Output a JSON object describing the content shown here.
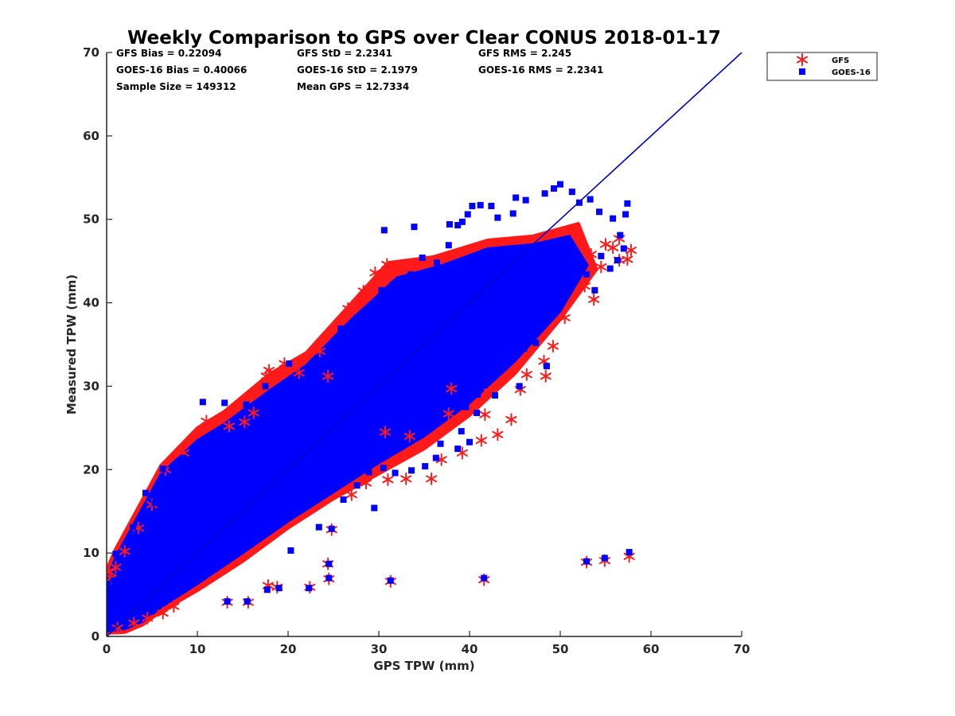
{
  "chart_data": {
    "type": "scatter",
    "title": "Weekly Comparison to GPS over Clear CONUS 2018-01-17",
    "xlabel": "GPS TPW (mm)",
    "ylabel": "Measured TPW (mm)",
    "xlim": [
      0,
      70
    ],
    "ylim": [
      0,
      70
    ],
    "xticks": [
      "0",
      "10",
      "20",
      "30",
      "40",
      "50",
      "60",
      "70"
    ],
    "yticks": [
      "0",
      "10",
      "20",
      "30",
      "40",
      "50",
      "60",
      "70"
    ],
    "grid": false,
    "legend_position": "outside-top-right",
    "stats": {
      "row1": [
        "GFS Bias = 0.22094",
        "GFS StD = 2.2341",
        "GFS RMS = 2.245"
      ],
      "row2": [
        "GOES-16 Bias = 0.40066",
        "GOES-16 StD = 2.1979",
        "GOES-16 RMS = 2.2341"
      ],
      "row3": [
        "Sample Size = 149312",
        "Mean GPS = 12.7334"
      ]
    },
    "reference_line": {
      "x": [
        0,
        70
      ],
      "y": [
        0,
        70
      ],
      "color": "#0000cc"
    },
    "series": [
      {
        "name": "GFS",
        "marker": "asterisk",
        "color": "#ff1a1a",
        "points": [
          [
            0.3,
            7.7
          ],
          [
            0.5,
            7.0
          ],
          [
            1.0,
            8.3
          ],
          [
            2.0,
            10.2
          ],
          [
            3.5,
            13.0
          ],
          [
            5.0,
            15.8
          ],
          [
            6.5,
            20.0
          ],
          [
            8.5,
            22.0
          ],
          [
            11.0,
            25.8
          ],
          [
            13.5,
            25.2
          ],
          [
            15.2,
            25.7
          ],
          [
            16.2,
            26.8
          ],
          [
            17.6,
            31.2
          ],
          [
            17.9,
            31.9
          ],
          [
            19.6,
            32.7
          ],
          [
            21.2,
            31.6
          ],
          [
            23.5,
            34.2
          ],
          [
            24.4,
            31.2
          ],
          [
            26.6,
            39.3
          ],
          [
            28.3,
            41.4
          ],
          [
            29.6,
            43.6
          ],
          [
            30.9,
            44.6
          ],
          [
            32.3,
            44.2
          ],
          [
            13.3,
            4.1
          ],
          [
            15.6,
            4.1
          ],
          [
            17.8,
            6.1
          ],
          [
            18.8,
            5.9
          ],
          [
            22.4,
            5.9
          ],
          [
            24.5,
            6.9
          ],
          [
            24.4,
            8.7
          ],
          [
            31.3,
            6.6
          ],
          [
            41.6,
            6.8
          ],
          [
            52.9,
            8.9
          ],
          [
            54.9,
            9.1
          ],
          [
            57.6,
            9.6
          ],
          [
            24.8,
            12.8
          ],
          [
            27.0,
            17.0
          ],
          [
            28.6,
            18.4
          ],
          [
            31.0,
            18.8
          ],
          [
            33.0,
            18.9
          ],
          [
            35.8,
            18.9
          ],
          [
            36.9,
            21.2
          ],
          [
            39.2,
            22.0
          ],
          [
            41.3,
            23.5
          ],
          [
            43.1,
            24.2
          ],
          [
            44.6,
            26.0
          ],
          [
            45.6,
            29.6
          ],
          [
            46.3,
            31.4
          ],
          [
            48.2,
            33.0
          ],
          [
            48.4,
            31.2
          ],
          [
            49.2,
            34.8
          ],
          [
            50.5,
            38.2
          ],
          [
            52.7,
            42.0
          ],
          [
            53.7,
            40.4
          ],
          [
            54.5,
            44.3
          ],
          [
            56.5,
            45.1
          ],
          [
            57.4,
            45.2
          ],
          [
            57.8,
            46.3
          ],
          [
            56.5,
            47.7
          ],
          [
            55.0,
            47.0
          ],
          [
            53.4,
            45.8
          ],
          [
            55.8,
            46.6
          ],
          [
            30.7,
            24.5
          ],
          [
            33.4,
            24.0
          ],
          [
            37.7,
            26.7
          ],
          [
            41.7,
            26.6
          ],
          [
            42.2,
            29.3
          ],
          [
            38.0,
            29.7
          ],
          [
            1.2,
            1.0
          ],
          [
            3.0,
            1.6
          ],
          [
            4.5,
            2.2
          ],
          [
            6.2,
            2.8
          ],
          [
            7.4,
            3.6
          ]
        ]
      },
      {
        "name": "GOES-16",
        "marker": "square",
        "color": "#0000ff",
        "points": [
          [
            4.3,
            17.2
          ],
          [
            6.2,
            20.1
          ],
          [
            7.2,
            20.2
          ],
          [
            10.6,
            28.1
          ],
          [
            13.0,
            28.0
          ],
          [
            15.4,
            27.8
          ],
          [
            17.5,
            30.0
          ],
          [
            20.1,
            32.7
          ],
          [
            22.8,
            30.8
          ],
          [
            25.1,
            35.4
          ],
          [
            25.8,
            36.9
          ],
          [
            27.6,
            38.2
          ],
          [
            29.0,
            39.2
          ],
          [
            30.3,
            41.5
          ],
          [
            31.6,
            42.2
          ],
          [
            33.5,
            43.4
          ],
          [
            34.8,
            45.4
          ],
          [
            36.4,
            44.8
          ],
          [
            37.7,
            46.9
          ],
          [
            30.6,
            48.7
          ],
          [
            33.9,
            49.1
          ],
          [
            37.8,
            49.4
          ],
          [
            38.7,
            49.3
          ],
          [
            39.2,
            49.7
          ],
          [
            39.8,
            50.6
          ],
          [
            40.3,
            51.6
          ],
          [
            41.2,
            51.7
          ],
          [
            42.4,
            51.6
          ],
          [
            43.1,
            50.2
          ],
          [
            44.8,
            50.7
          ],
          [
            45.1,
            52.6
          ],
          [
            46.2,
            52.3
          ],
          [
            48.3,
            53.1
          ],
          [
            49.3,
            53.7
          ],
          [
            50.0,
            54.2
          ],
          [
            51.3,
            53.3
          ],
          [
            52.1,
            52.0
          ],
          [
            53.3,
            52.4
          ],
          [
            54.3,
            50.9
          ],
          [
            55.8,
            50.1
          ],
          [
            57.4,
            51.9
          ],
          [
            57.2,
            50.6
          ],
          [
            56.6,
            48.1
          ],
          [
            57.0,
            46.5
          ],
          [
            56.3,
            45.1
          ],
          [
            54.5,
            45.6
          ],
          [
            55.5,
            44.1
          ],
          [
            53.8,
            41.5
          ],
          [
            52.9,
            43.4
          ],
          [
            51.4,
            44.4
          ],
          [
            48.9,
            39.4
          ],
          [
            47.3,
            35.2
          ],
          [
            48.5,
            32.4
          ],
          [
            45.5,
            30.0
          ],
          [
            42.8,
            28.9
          ],
          [
            40.9,
            29.0
          ],
          [
            39.6,
            27.5
          ],
          [
            40.8,
            26.8
          ],
          [
            39.1,
            24.6
          ],
          [
            40.0,
            23.3
          ],
          [
            38.7,
            22.5
          ],
          [
            36.3,
            21.4
          ],
          [
            35.1,
            20.4
          ],
          [
            33.6,
            19.9
          ],
          [
            31.8,
            19.6
          ],
          [
            30.5,
            20.2
          ],
          [
            28.9,
            19.7
          ],
          [
            27.6,
            18.1
          ],
          [
            26.1,
            16.4
          ],
          [
            24.8,
            12.9
          ],
          [
            13.3,
            4.2
          ],
          [
            15.5,
            4.2
          ],
          [
            17.7,
            5.6
          ],
          [
            19.0,
            5.8
          ],
          [
            22.3,
            5.8
          ],
          [
            24.5,
            7.0
          ],
          [
            24.5,
            8.7
          ],
          [
            31.3,
            6.7
          ],
          [
            41.6,
            7.0
          ],
          [
            52.9,
            9.0
          ],
          [
            54.9,
            9.4
          ],
          [
            57.6,
            10.1
          ],
          [
            29.5,
            15.4
          ],
          [
            23.4,
            13.1
          ],
          [
            20.3,
            10.3
          ],
          [
            36.8,
            23.1
          ],
          [
            44.6,
            33.3
          ],
          [
            46.0,
            34.5
          ],
          [
            31.8,
            24.7
          ],
          [
            26.4,
            20.4
          ],
          [
            1.0,
            9.9
          ],
          [
            0.8,
            6.7
          ],
          [
            2.9,
            13.1
          ],
          [
            5.3,
            16.0
          ],
          [
            8.4,
            21.4
          ]
        ]
      }
    ]
  }
}
